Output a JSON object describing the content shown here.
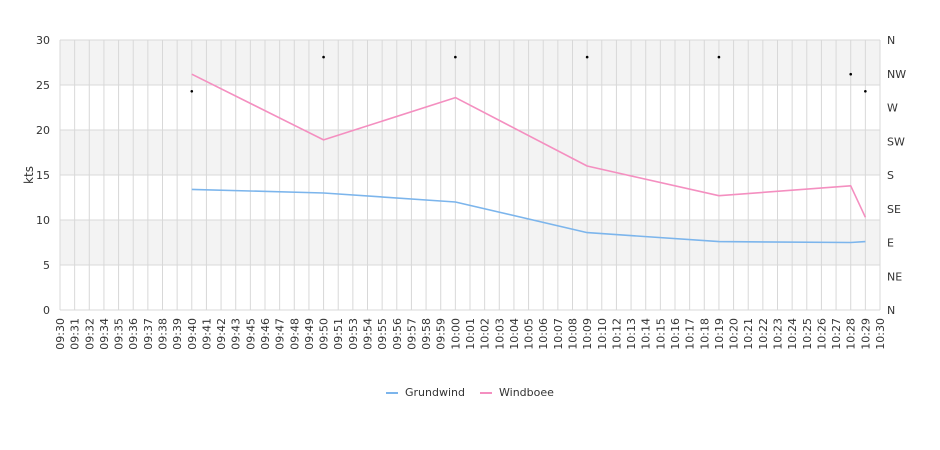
{
  "chart_data": {
    "type": "line",
    "ylabel": "kts",
    "ylim": [
      0,
      30
    ],
    "y_ticks": [
      "0",
      "5",
      "10",
      "15",
      "20",
      "25",
      "30"
    ],
    "y2_ticks": [
      "N",
      "NE",
      "E",
      "SE",
      "S",
      "SW",
      "W",
      "NW",
      "N"
    ],
    "x_ticks": [
      "09:30",
      "09:31",
      "09:32",
      "09:34",
      "09:35",
      "09:36",
      "09:37",
      "09:38",
      "09:39",
      "09:40",
      "09:41",
      "09:42",
      "09:43",
      "09:45",
      "09:46",
      "09:47",
      "09:48",
      "09:49",
      "09:50",
      "09:51",
      "09:53",
      "09:54",
      "09:55",
      "09:56",
      "09:57",
      "09:58",
      "09:59",
      "10:00",
      "10:01",
      "10:02",
      "10:03",
      "10:04",
      "10:05",
      "10:06",
      "10:07",
      "10:08",
      "10:09",
      "10:10",
      "10:12",
      "10:13",
      "10:14",
      "10:15",
      "10:16",
      "10:17",
      "10:18",
      "10:19",
      "10:20",
      "10:21",
      "10:22",
      "10:23",
      "10:24",
      "10:25",
      "10:26",
      "10:27",
      "10:28",
      "10:29",
      "10:30"
    ],
    "grid": true,
    "legend_position": "bottom",
    "series": [
      {
        "name": "Grundwind",
        "color": "#7cb5ec",
        "points": [
          [
            9,
            13.4
          ],
          [
            18,
            13.0
          ],
          [
            27,
            12.0
          ],
          [
            36,
            8.6
          ],
          [
            45,
            7.6
          ],
          [
            54,
            7.5
          ],
          [
            55,
            7.6
          ]
        ]
      },
      {
        "name": "Windboee",
        "color": "#f48fc0",
        "points": [
          [
            9,
            26.2
          ],
          [
            18,
            18.9
          ],
          [
            27,
            23.6
          ],
          [
            36,
            16.0
          ],
          [
            45,
            12.7
          ],
          [
            54,
            13.8
          ],
          [
            55,
            10.3
          ]
        ]
      }
    ],
    "direction_markers": [
      [
        9,
        24.3
      ],
      [
        18,
        28.1
      ],
      [
        27,
        28.1
      ],
      [
        36,
        28.1
      ],
      [
        45,
        28.1
      ],
      [
        54,
        26.2
      ],
      [
        55,
        24.3
      ]
    ]
  }
}
